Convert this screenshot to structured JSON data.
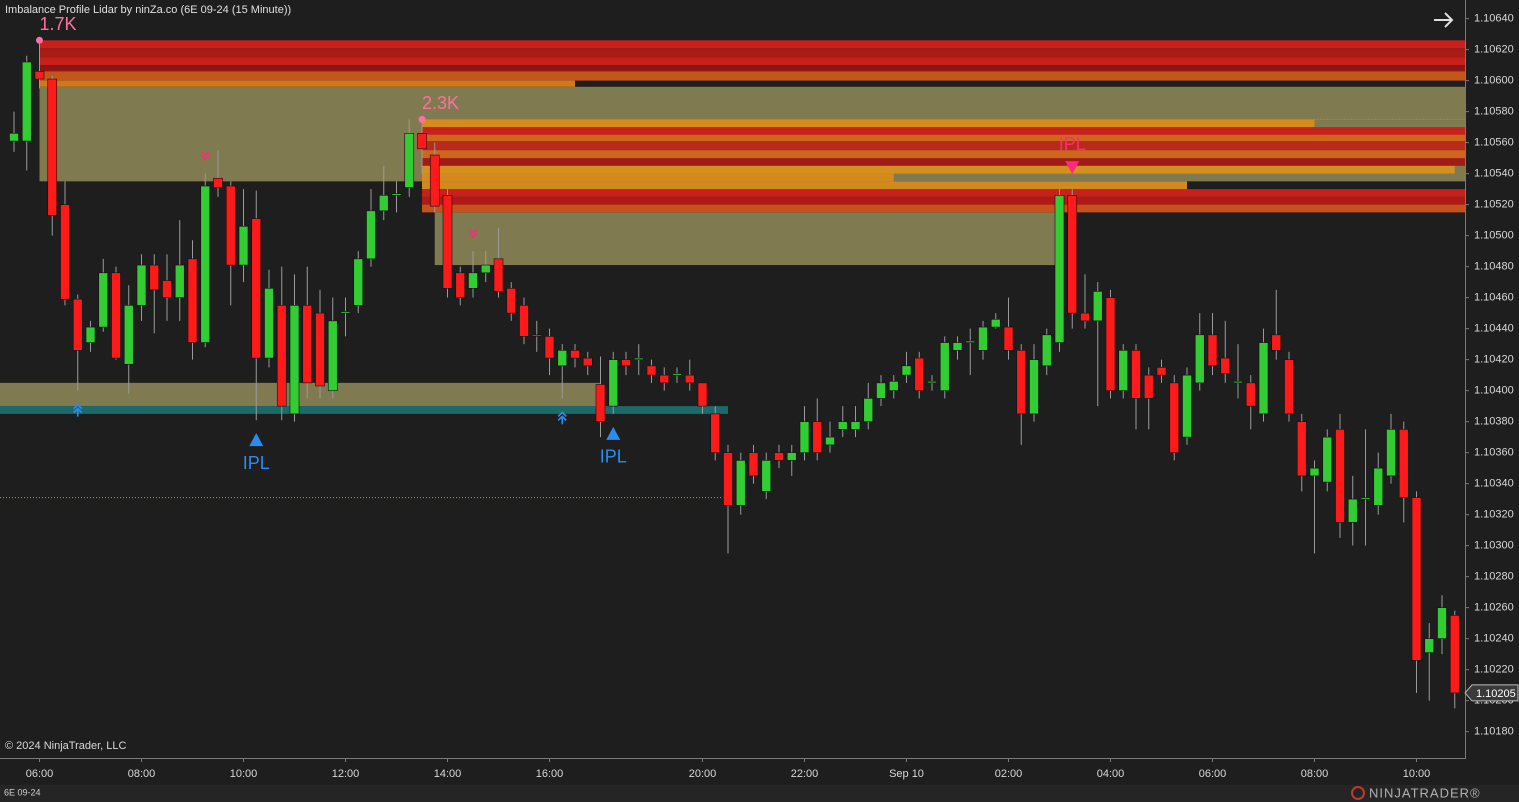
{
  "chart_data": {
    "type": "candlestick",
    "title": "Imbalance Profile Lidar by ninZa.co (6E 09-24 (15 Minute))",
    "copyright": "© 2024 NinjaTrader, LLC",
    "instrument": "6E 09-24",
    "logo": "NINJATRADER®",
    "up_color": "#32cd32",
    "down_color": "#ff1a1a",
    "wick_color": "#9a9a9a",
    "categories": [
      null,
      null,
      "06:00",
      null,
      null,
      null,
      null,
      null,
      null,
      null,
      "08:00",
      null,
      null,
      null,
      null,
      null,
      null,
      null,
      "10:00",
      null,
      null,
      null,
      null,
      null,
      null,
      null,
      "12:00",
      null,
      null,
      null,
      null,
      null,
      null,
      null,
      "14:00",
      null,
      null,
      null,
      null,
      null,
      null,
      null,
      "16:00",
      null,
      null,
      null,
      null,
      null,
      null,
      null,
      null,
      null,
      null,
      null,
      "20:00",
      null,
      null,
      null,
      null,
      null,
      null,
      null,
      "22:00",
      null,
      null,
      null,
      null,
      null,
      null,
      null,
      "Sep 10",
      null,
      null,
      null,
      null,
      null,
      null,
      null,
      "02:00",
      null,
      null,
      null,
      null,
      null,
      null,
      null,
      "04:00",
      null,
      null,
      null,
      null,
      null,
      null,
      null,
      "06:00",
      null,
      null,
      null,
      null,
      null,
      null,
      null,
      "08:00",
      null,
      null,
      null,
      null,
      null,
      null,
      null,
      "10:00",
      null,
      null,
      null
    ],
    "open": [
      1.10561,
      1.10561,
      1.10606,
      1.10601,
      1.1052,
      1.10459,
      1.10431,
      1.10441,
      1.10476,
      1.10417,
      1.10455,
      1.10481,
      1.10471,
      1.1046,
      1.10485,
      1.10431,
      1.10537,
      1.10532,
      1.10481,
      1.10511,
      1.10421,
      1.10455,
      1.10385,
      1.10455,
      1.1045,
      1.104,
      1.1045,
      1.10455,
      1.10485,
      1.10516,
      1.10526,
      1.10531,
      1.10566,
      1.10552,
      1.10526,
      1.10476,
      1.10466,
      1.10476,
      1.10485,
      1.10466,
      1.10455,
      1.10436,
      1.10435,
      1.10416,
      1.10426,
      1.10421,
      1.10404,
      1.1039,
      1.1042,
      1.1042,
      1.10416,
      1.1041,
      1.1041,
      1.1041,
      1.10405,
      1.10385,
      1.1036,
      1.10326,
      1.1036,
      1.10335,
      1.1036,
      1.10355,
      1.1036,
      1.1038,
      1.10365,
      1.10375,
      1.10375,
      1.1038,
      1.10395,
      1.104,
      1.1041,
      1.10421,
      1.10405,
      1.104,
      1.10426,
      1.10431,
      1.10426,
      1.10441,
      1.10441,
      1.10426,
      1.10385,
      1.10416,
      1.10431,
      1.10526,
      1.1045,
      1.10445,
      1.1046,
      1.104,
      1.10426,
      1.1041,
      1.10415,
      1.10405,
      1.1037,
      1.10405,
      1.10436,
      1.10421,
      1.10405,
      1.10405,
      1.10385,
      1.10436,
      1.1042,
      1.1038,
      1.10345,
      1.10341,
      1.10375,
      1.10315,
      1.1033,
      1.10326,
      1.10345,
      1.10375,
      1.10331,
      1.10231,
      1.1024,
      1.10255
    ],
    "high": [
      1.1058,
      1.10616,
      1.10626,
      1.10603,
      1.10535,
      1.10462,
      1.10445,
      1.10485,
      1.1048,
      1.10468,
      1.10488,
      1.10488,
      1.10488,
      1.1051,
      1.10497,
      1.1054,
      1.10555,
      1.10535,
      1.1053,
      1.10529,
      1.10478,
      1.1048,
      1.10475,
      1.1048,
      1.10465,
      1.1046,
      1.1046,
      1.1049,
      1.1053,
      1.10545,
      1.10535,
      1.10575,
      1.10575,
      1.1056,
      1.1053,
      1.1048,
      1.1049,
      1.1049,
      1.10505,
      1.1047,
      1.1046,
      1.10445,
      1.1044,
      1.1043,
      1.1043,
      1.10425,
      1.10422,
      1.10425,
      1.10425,
      1.1043,
      1.1042,
      1.10415,
      1.10415,
      1.1042,
      1.10405,
      1.1039,
      1.10365,
      1.1036,
      1.10365,
      1.1036,
      1.10365,
      1.10365,
      1.1039,
      1.10395,
      1.1038,
      1.1039,
      1.1039,
      1.10405,
      1.1041,
      1.1041,
      1.10425,
      1.10425,
      1.1041,
      1.10435,
      1.10435,
      1.1044,
      1.10445,
      1.1045,
      1.1046,
      1.1043,
      1.1043,
      1.1044,
      1.10531,
      1.1053,
      1.10475,
      1.1047,
      1.10465,
      1.1043,
      1.1043,
      1.10415,
      1.1042,
      1.1041,
      1.10415,
      1.1045,
      1.1045,
      1.10445,
      1.1043,
      1.1041,
      1.1044,
      1.10465,
      1.10425,
      1.10385,
      1.10355,
      1.10375,
      1.10385,
      1.10345,
      1.10375,
      1.1036,
      1.10385,
      1.1038,
      1.10335,
      1.1025,
      1.10268,
      1.10258
    ],
    "low": [
      1.10554,
      1.10542,
      1.10595,
      1.105,
      1.10455,
      1.104,
      1.10425,
      1.10438,
      1.1042,
      1.10398,
      1.10445,
      1.10437,
      1.10445,
      1.10445,
      1.1042,
      1.10428,
      1.10525,
      1.10455,
      1.1047,
      1.10381,
      1.10415,
      1.10381,
      1.1038,
      1.10395,
      1.10395,
      1.10395,
      1.10435,
      1.1045,
      1.1048,
      1.1051,
      1.10515,
      1.10525,
      1.1054,
      1.10515,
      1.1046,
      1.10455,
      1.1046,
      1.1047,
      1.1046,
      1.10445,
      1.1043,
      1.10425,
      1.1041,
      1.10395,
      1.10415,
      1.1041,
      1.1037,
      1.10385,
      1.1041,
      1.1041,
      1.10405,
      1.104,
      1.10405,
      1.104,
      1.10385,
      1.10355,
      1.10295,
      1.1032,
      1.1034,
      1.1033,
      1.1035,
      1.10345,
      1.10355,
      1.10355,
      1.1036,
      1.1037,
      1.1037,
      1.10375,
      1.1039,
      1.10395,
      1.10405,
      1.10395,
      1.104,
      1.10395,
      1.1042,
      1.1041,
      1.1042,
      1.1044,
      1.1042,
      1.10365,
      1.1038,
      1.1041,
      1.10425,
      1.1044,
      1.1044,
      1.1039,
      1.10395,
      1.10395,
      1.10375,
      1.10375,
      1.10405,
      1.10355,
      1.10365,
      1.104,
      1.1041,
      1.10405,
      1.10395,
      1.10375,
      1.1038,
      1.1042,
      1.1038,
      1.10335,
      1.10295,
      1.10335,
      1.10305,
      1.103,
      1.103,
      1.1032,
      1.1034,
      1.10315,
      1.10205,
      1.102,
      1.1023,
      1.10195
    ],
    "close": [
      1.10566,
      1.10612,
      1.10601,
      1.10513,
      1.10459,
      1.10426,
      1.10441,
      1.10476,
      1.10421,
      1.10455,
      1.10481,
      1.10465,
      1.1046,
      1.10481,
      1.10431,
      1.10532,
      1.10531,
      1.10481,
      1.10506,
      1.10421,
      1.10466,
      1.1039,
      1.10455,
      1.10405,
      1.10403,
      1.10445,
      1.10451,
      1.10485,
      1.10516,
      1.10526,
      1.10527,
      1.10566,
      1.10556,
      1.10519,
      1.10466,
      1.1046,
      1.10476,
      1.10481,
      1.10464,
      1.1045,
      1.10435,
      1.10435,
      1.10421,
      1.10426,
      1.10421,
      1.10416,
      1.1038,
      1.1042,
      1.10416,
      1.10421,
      1.1041,
      1.10405,
      1.10411,
      1.10405,
      1.1039,
      1.1036,
      1.10326,
      1.10355,
      1.10345,
      1.10355,
      1.10355,
      1.1036,
      1.1038,
      1.1036,
      1.1037,
      1.1038,
      1.1038,
      1.10395,
      1.10405,
      1.10406,
      1.10416,
      1.104,
      1.10406,
      1.10431,
      1.10431,
      1.10432,
      1.10441,
      1.10446,
      1.10426,
      1.10385,
      1.1042,
      1.10436,
      1.10526,
      1.1045,
      1.10445,
      1.10464,
      1.104,
      1.10426,
      1.10395,
      1.10395,
      1.1041,
      1.1036,
      1.1041,
      1.10436,
      1.10416,
      1.10411,
      1.10406,
      1.1039,
      1.10431,
      1.10426,
      1.10385,
      1.10345,
      1.1035,
      1.1037,
      1.10315,
      1.1033,
      1.10331,
      1.1035,
      1.10375,
      1.10331,
      1.10226,
      1.1024,
      1.1026,
      1.10205
    ],
    "ylim": [
      1.10163,
      1.10652
    ],
    "yticks": [
      {
        "value": 1.1064,
        "label": "1.10640"
      },
      {
        "value": 1.1062,
        "label": "1.10620"
      },
      {
        "value": 1.106,
        "label": "1.10600"
      },
      {
        "value": 1.1058,
        "label": "1.10580"
      },
      {
        "value": 1.1056,
        "label": "1.10560"
      },
      {
        "value": 1.1054,
        "label": "1.10540"
      },
      {
        "value": 1.1052,
        "label": "1.10520"
      },
      {
        "value": 1.105,
        "label": "1.10500"
      },
      {
        "value": 1.1048,
        "label": "1.10480"
      },
      {
        "value": 1.1046,
        "label": "1.10460"
      },
      {
        "value": 1.1044,
        "label": "1.10440"
      },
      {
        "value": 1.1042,
        "label": "1.10420"
      },
      {
        "value": 1.104,
        "label": "1.10400"
      },
      {
        "value": 1.1038,
        "label": "1.10380"
      },
      {
        "value": 1.1036,
        "label": "1.10360"
      },
      {
        "value": 1.1034,
        "label": "1.10340"
      },
      {
        "value": 1.1032,
        "label": "1.10320"
      },
      {
        "value": 1.103,
        "label": "1.10300"
      },
      {
        "value": 1.1028,
        "label": "1.10280"
      },
      {
        "value": 1.1026,
        "label": "1.10260"
      },
      {
        "value": 1.1024,
        "label": "1.10240"
      },
      {
        "value": 1.1022,
        "label": "1.10220"
      },
      {
        "value": 1.102,
        "label": "1.10200"
      },
      {
        "value": 1.1018,
        "label": "1.10180"
      }
    ],
    "last_price": {
      "value": 1.10205,
      "label": "1.10205"
    },
    "zones": [
      {
        "low": 1.10535,
        "high": 1.10596,
        "start": 2,
        "end": null,
        "color": "#7f7a4f"
      },
      {
        "low": 1.10481,
        "high": 1.10515,
        "start": 33,
        "end": 82,
        "color": "#7f7a4f"
      },
      {
        "low": 1.1039,
        "high": 1.10405,
        "start": null,
        "end": 46,
        "color": "#7f7a4f"
      },
      {
        "low": 1.10385,
        "high": 1.1039,
        "start": null,
        "end": 56,
        "color": "#1d6a6a"
      },
      {
        "low": 1.10621,
        "high": 1.10626,
        "start": 2,
        "end": null,
        "color": "#c8211c"
      },
      {
        "low": 1.10615,
        "high": 1.10621,
        "start": 2,
        "end": null,
        "color": "#a81c18"
      },
      {
        "low": 1.1061,
        "high": 1.10615,
        "start": 2,
        "end": null,
        "color": "#c8211c"
      },
      {
        "low": 1.10606,
        "high": 1.1061,
        "start": 2,
        "end": null,
        "color": "#8c1612"
      },
      {
        "low": 1.106,
        "high": 1.10606,
        "start": 2,
        "end": null,
        "color": "#c4561c"
      },
      {
        "low": 1.10596,
        "high": 1.106,
        "start": 2,
        "end": 44,
        "color": "#cc7a1e"
      },
      {
        "low": 1.1057,
        "high": 1.10575,
        "start": 32,
        "end": 102,
        "color": "#d88a1c"
      },
      {
        "low": 1.10565,
        "high": 1.1057,
        "start": 32,
        "end": null,
        "color": "#c8211c"
      },
      {
        "low": 1.10561,
        "high": 1.10565,
        "start": 32,
        "end": null,
        "color": "#d0661c"
      },
      {
        "low": 1.10555,
        "high": 1.10561,
        "start": 32,
        "end": null,
        "color": "#b82a1c"
      },
      {
        "low": 1.1055,
        "high": 1.10555,
        "start": 32,
        "end": null,
        "color": "#d0661c"
      },
      {
        "low": 1.10545,
        "high": 1.1055,
        "start": 32,
        "end": null,
        "color": "#a01c18"
      },
      {
        "low": 1.1054,
        "high": 1.10545,
        "start": 32,
        "end": 113,
        "color": "#d4901e"
      },
      {
        "low": 1.10535,
        "high": 1.1054,
        "start": 32,
        "end": 69,
        "color": "#d48a1e"
      },
      {
        "low": 1.1053,
        "high": 1.10535,
        "start": 32,
        "end": 92,
        "color": "#d08a1e"
      },
      {
        "low": 1.10525,
        "high": 1.1053,
        "start": 32,
        "end": null,
        "color": "#c8211c"
      },
      {
        "low": 1.1052,
        "high": 1.10525,
        "start": 32,
        "end": null,
        "color": "#b01a16"
      },
      {
        "low": 1.10515,
        "high": 1.1052,
        "start": 32,
        "end": null,
        "color": "#c8501c"
      }
    ],
    "levels": [
      {
        "price": 1.10331,
        "start": null,
        "end": 56,
        "color": "#c8901e"
      },
      {
        "price": 1.10575,
        "start": 102,
        "end": null,
        "color": "#c8901e"
      }
    ],
    "annotations": [
      {
        "text": "1.7K",
        "index": 2,
        "price": 1.10626,
        "color": "#ff6fa0"
      },
      {
        "text": "2.3K",
        "index": 32,
        "price": 1.10575,
        "color": "#ff6fa0"
      }
    ],
    "signals": [
      {
        "label": "IPL",
        "index": 19,
        "dir": "up",
        "color": "#2a8cf0"
      },
      {
        "label": "IPL",
        "index": 47,
        "dir": "up",
        "color": "#2a8cf0"
      },
      {
        "label": "IPL",
        "index": 83,
        "dir": "down",
        "color": "#ff2a7a"
      }
    ],
    "chevrons": [
      {
        "index": 5,
        "dir": "up",
        "color": "#2a8cf0"
      },
      {
        "index": 43,
        "dir": "up",
        "color": "#2a8cf0"
      },
      {
        "index": 15,
        "dir": "down",
        "color": "#ff2a7a"
      },
      {
        "index": 36,
        "dir": "down",
        "color": "#ff2a7a"
      }
    ]
  }
}
